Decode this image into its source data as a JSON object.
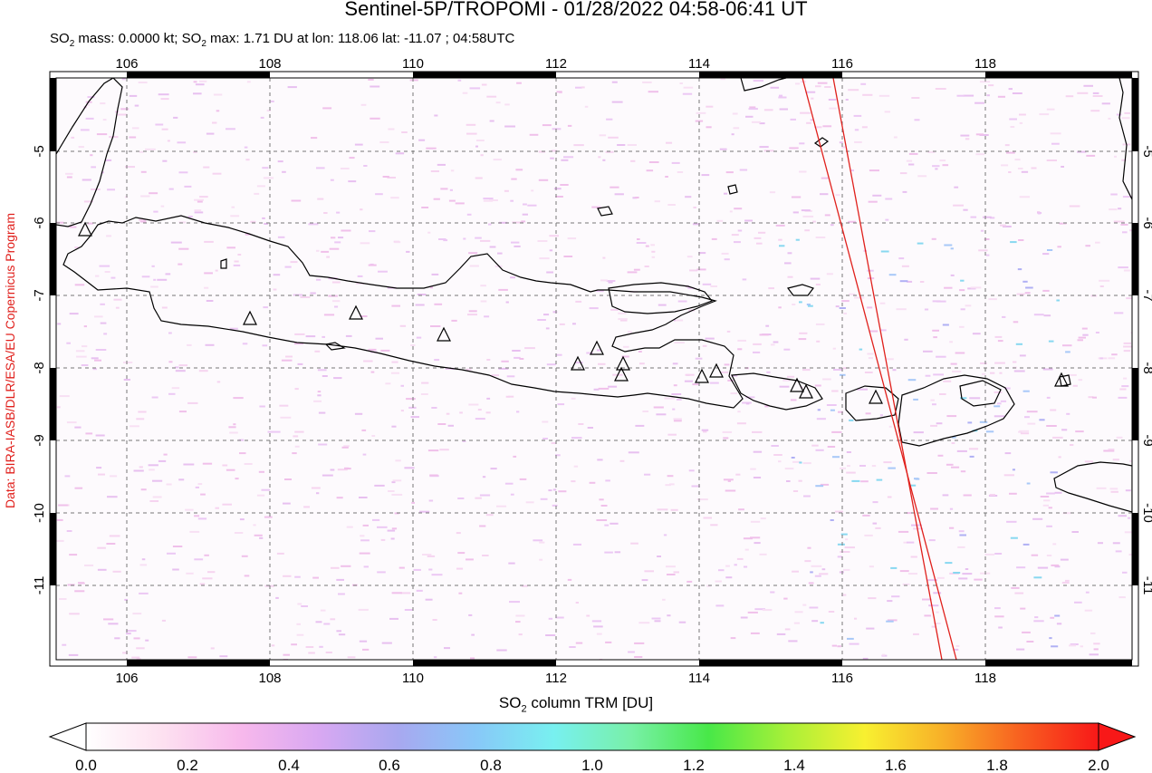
{
  "title": "Sentinel-5P/TROPOMI - 01/28/2022 04:58-06:41 UT",
  "subtitle": {
    "so2_mass_label": "SO",
    "so2_mass_sub": "2",
    "so2_mass_value": " mass: 0.0000 kt; SO",
    "so2_max_sub": "2",
    "so2_max_value": " max: 1.71 DU at lon: 118.06 lat: -11.07 ; 04:58UTC"
  },
  "credit": "Data: BIRA-IASB/DLR/ESA/EU Copernicus Program",
  "axis_title": {
    "prefix": "SO",
    "sub": "2",
    "suffix": " column TRM [DU]"
  },
  "lon_ticks": [
    "106",
    "108",
    "110",
    "112",
    "114",
    "116",
    "118"
  ],
  "lat_ticks": [
    "-5",
    "-6",
    "-7",
    "-8",
    "-9",
    "-10",
    "-11"
  ],
  "colorbar": {
    "ticks": [
      "0.0",
      "0.2",
      "0.4",
      "0.6",
      "0.8",
      "1.0",
      "1.2",
      "1.4",
      "1.6",
      "1.8",
      "2.0"
    ],
    "colors": [
      "#ffffff",
      "#fde0f0",
      "#f7b8ec",
      "#d8a8f2",
      "#a8a8f0",
      "#88c8f8",
      "#78f0f0",
      "#78f0a8",
      "#48e848",
      "#a8f038",
      "#f8f030",
      "#f8b028",
      "#f86020",
      "#f81818"
    ]
  },
  "volcano_marker_count": 14,
  "colors": {
    "coastline": "#000000",
    "swath_edge": "#e0201c",
    "noise": "#f2c4ec",
    "credit": "#e0201c"
  }
}
